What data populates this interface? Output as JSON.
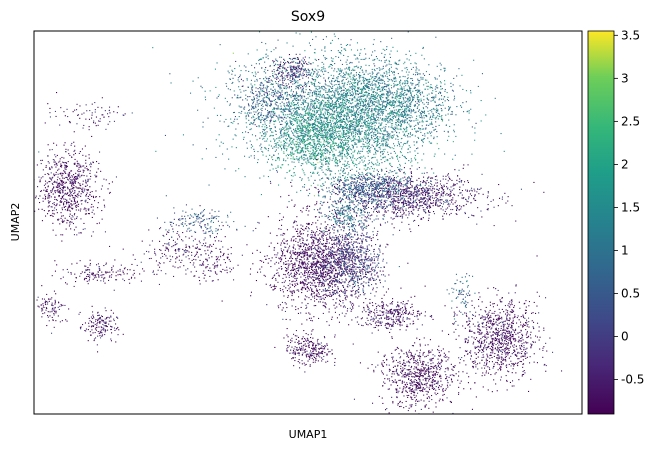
{
  "chart_data": {
    "type": "scatter",
    "title": "Sox9",
    "xlabel": "UMAP1",
    "ylabel": "UMAP2",
    "ticks_shown_on_axes": false,
    "colorbar": {
      "colormap": "viridis",
      "vmin": -0.9,
      "vmax": 3.55,
      "ticks": [
        "3.5",
        "3",
        "2.5",
        "2",
        "1.5",
        "1",
        "0.5",
        "0",
        "-0.5"
      ],
      "tick_values": [
        3.5,
        3,
        2.5,
        2,
        1.5,
        1,
        0.5,
        0,
        -0.5
      ]
    },
    "colors": {
      "low": "#440154",
      "mid": "#21918c",
      "high": "#fde725"
    },
    "clusters": [
      {
        "x": 0.52,
        "y": 0.8,
        "sx": 0.09,
        "sy": 0.075,
        "n": 2000,
        "level": 1.2
      },
      {
        "x": 0.6,
        "y": 0.76,
        "sx": 0.06,
        "sy": 0.08,
        "n": 1400,
        "level": 1.6
      },
      {
        "x": 0.51,
        "y": 0.72,
        "sx": 0.04,
        "sy": 0.05,
        "n": 900,
        "level": 1.9
      },
      {
        "x": 0.66,
        "y": 0.82,
        "sx": 0.06,
        "sy": 0.05,
        "n": 900,
        "level": 1.1
      },
      {
        "x": 0.43,
        "y": 0.83,
        "sx": 0.03,
        "sy": 0.04,
        "n": 300,
        "level": 0.4
      },
      {
        "x": 0.47,
        "y": 0.9,
        "sx": 0.02,
        "sy": 0.02,
        "n": 160,
        "level": -0.6
      },
      {
        "x": 0.68,
        "y": 0.57,
        "sx": 0.07,
        "sy": 0.03,
        "n": 1100,
        "level": -0.5
      },
      {
        "x": 0.61,
        "y": 0.59,
        "sx": 0.04,
        "sy": 0.02,
        "n": 500,
        "level": 0.6
      },
      {
        "x": 0.52,
        "y": 0.39,
        "sx": 0.045,
        "sy": 0.06,
        "n": 1600,
        "level": -0.85
      },
      {
        "x": 0.58,
        "y": 0.4,
        "sx": 0.03,
        "sy": 0.05,
        "n": 600,
        "level": 0.1
      },
      {
        "x": 0.57,
        "y": 0.52,
        "sx": 0.02,
        "sy": 0.02,
        "n": 200,
        "level": 1.0
      },
      {
        "x": 0.5,
        "y": 0.17,
        "sx": 0.02,
        "sy": 0.02,
        "n": 250,
        "level": -0.8
      },
      {
        "x": 0.85,
        "y": 0.2,
        "sx": 0.035,
        "sy": 0.05,
        "n": 900,
        "level": -0.8
      },
      {
        "x": 0.7,
        "y": 0.1,
        "sx": 0.035,
        "sy": 0.04,
        "n": 700,
        "level": -0.85
      },
      {
        "x": 0.65,
        "y": 0.26,
        "sx": 0.03,
        "sy": 0.02,
        "n": 300,
        "level": -0.7
      },
      {
        "x": 0.06,
        "y": 0.59,
        "sx": 0.03,
        "sy": 0.05,
        "n": 700,
        "level": -0.8
      },
      {
        "x": 0.09,
        "y": 0.78,
        "sx": 0.04,
        "sy": 0.02,
        "n": 80,
        "level": -0.4
      },
      {
        "x": 0.12,
        "y": 0.23,
        "sx": 0.015,
        "sy": 0.02,
        "n": 150,
        "level": -0.7
      },
      {
        "x": 0.03,
        "y": 0.28,
        "sx": 0.015,
        "sy": 0.02,
        "n": 90,
        "level": -0.7
      },
      {
        "x": 0.27,
        "y": 0.43,
        "sx": 0.04,
        "sy": 0.03,
        "n": 200,
        "level": -0.6
      },
      {
        "x": 0.3,
        "y": 0.5,
        "sx": 0.03,
        "sy": 0.02,
        "n": 150,
        "level": 0.5
      },
      {
        "x": 0.12,
        "y": 0.37,
        "sx": 0.04,
        "sy": 0.015,
        "n": 150,
        "level": -0.7
      },
      {
        "x": 0.33,
        "y": 0.39,
        "sx": 0.02,
        "sy": 0.03,
        "n": 90,
        "level": -0.8
      },
      {
        "x": 0.78,
        "y": 0.31,
        "sx": 0.01,
        "sy": 0.03,
        "n": 70,
        "level": 0.8
      }
    ]
  }
}
